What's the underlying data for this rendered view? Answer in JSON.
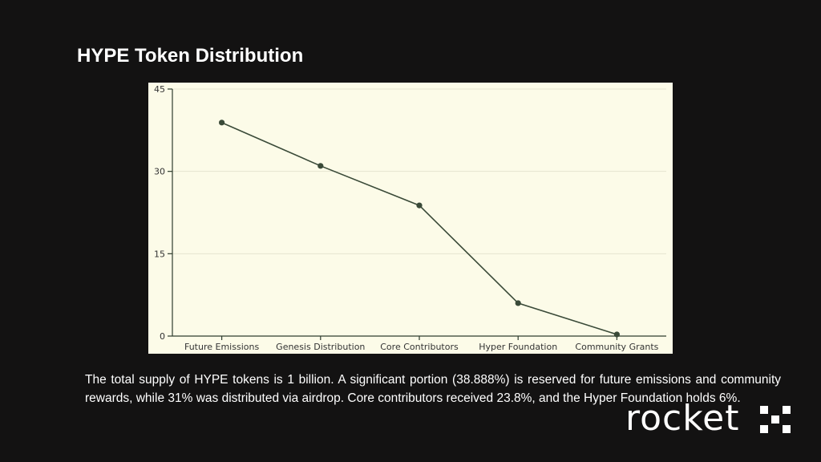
{
  "slide": {
    "title": "HYPE Token Distribution",
    "caption": "The total supply of HYPE tokens is 1 billion. A significant portion (38.888%) is reserved for future emissions and community rewards, while 31% was distributed via airdrop. Core contributors received 23.8%, and the Hyper Foundation holds 6%."
  },
  "logo": {
    "text": "rocket",
    "icon": "x-mark-icon"
  },
  "chart_data": {
    "type": "line",
    "categories": [
      "Future Emissions",
      "Genesis Distribution",
      "Core Contributors",
      "Hyper Foundation",
      "Community Grants"
    ],
    "values": [
      38.888,
      31,
      23.8,
      6,
      0.3
    ],
    "ylim": [
      0,
      45
    ],
    "yticks": [
      0,
      15,
      30,
      45
    ],
    "grid": true,
    "colors": {
      "line": "#3a4a38",
      "background": "#fcfbe8",
      "grid": "#e6e4d0",
      "axis": "#2f3d2f"
    }
  }
}
